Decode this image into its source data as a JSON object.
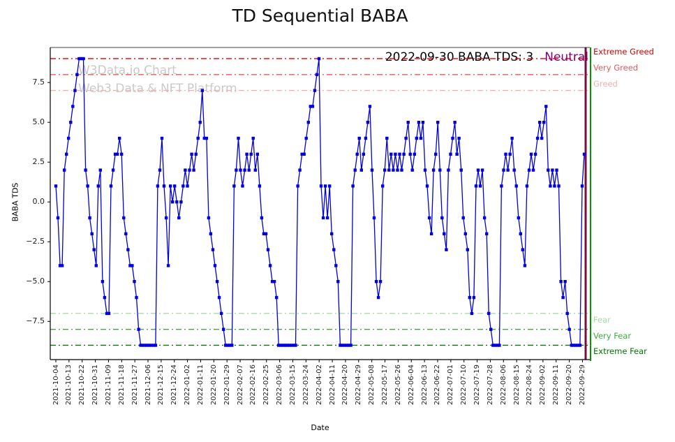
{
  "page": {
    "title": "TD Sequential BABA"
  },
  "watermark": {
    "line1": "W3Data.io Chart",
    "line2": "Web3 Data & NFT Platform"
  },
  "annotation": {
    "date_text": "2022-09-30 BABA TDS: 3",
    "sentiment": "Neutral",
    "sentiment_color": "#800080"
  },
  "axes": {
    "x_label": "Date",
    "y_label": "BABA TDS"
  },
  "chart_data": {
    "type": "line",
    "title": "TD Sequential BABA",
    "xlabel": "Date",
    "ylabel": "BABA TDS",
    "ylim": [
      -9.9,
      9.7
    ],
    "y_ticks": [
      7.5,
      5.0,
      2.5,
      0.0,
      -2.5,
      -5.0,
      -7.5
    ],
    "x_start": "2021-10-04",
    "x_end": "2022-09-30",
    "x_tick_labels": [
      "2021-10-04",
      "2021-10-13",
      "2021-10-22",
      "2021-10-31",
      "2021-11-09",
      "2021-11-18",
      "2021-11-27",
      "2021-12-06",
      "2021-12-15",
      "2021-12-24",
      "2022-01-02",
      "2022-01-11",
      "2022-01-20",
      "2022-01-29",
      "2022-02-07",
      "2022-02-16",
      "2022-02-25",
      "2022-03-06",
      "2022-03-15",
      "2022-03-24",
      "2022-04-02",
      "2022-04-11",
      "2022-04-20",
      "2022-04-29",
      "2022-05-08",
      "2022-05-17",
      "2022-05-26",
      "2022-06-04",
      "2022-06-13",
      "2022-06-22",
      "2022-07-01",
      "2022-07-10",
      "2022-07-19",
      "2022-07-28",
      "2022-08-06",
      "2022-08-15",
      "2022-08-24",
      "2022-09-02",
      "2022-09-11",
      "2022-09-20",
      "2022-09-29"
    ],
    "series": [
      {
        "name": "BABA TDS",
        "color": "#0000dd",
        "marker": "square",
        "values": [
          1,
          -1,
          -4,
          -4,
          2,
          3,
          4,
          5,
          6,
          7,
          8,
          9,
          9,
          9,
          2,
          1,
          -1,
          -2,
          -3,
          -4,
          1,
          2,
          -5,
          -6,
          -7,
          -7,
          1,
          2,
          3,
          3,
          4,
          3,
          -1,
          -2,
          -3,
          -4,
          -4,
          -5,
          -6,
          -8,
          -9,
          -9,
          -9,
          -9,
          -9,
          -9,
          -9,
          -9,
          1,
          2,
          4,
          1,
          -1,
          -4,
          1,
          0,
          1,
          0,
          -1,
          0,
          1,
          2,
          1,
          2,
          3,
          2,
          3,
          4,
          5,
          7,
          4,
          4,
          -1,
          -2,
          -3,
          -4,
          -5,
          -6,
          -7,
          -8,
          -9,
          -9,
          -9,
          -9,
          1,
          2,
          4,
          2,
          1,
          2,
          3,
          2,
          3,
          4,
          2,
          3,
          1,
          -1,
          -2,
          -2,
          -3,
          -4,
          -5,
          -5,
          -6,
          -9,
          -9,
          -9,
          -9,
          -9,
          -9,
          -9,
          -9,
          -9,
          1,
          2,
          3,
          3,
          4,
          5,
          6,
          6,
          7,
          8,
          9,
          1,
          -1,
          1,
          -1,
          1,
          -2,
          -3,
          -4,
          -5,
          -9,
          -9,
          -9,
          -9,
          -9,
          -9,
          1,
          2,
          3,
          4,
          2,
          3,
          4,
          5,
          6,
          2,
          -1,
          -5,
          -6,
          -5,
          1,
          2,
          4,
          2,
          3,
          2,
          3,
          2,
          3,
          2,
          3,
          4,
          5,
          3,
          2,
          3,
          4,
          5,
          4,
          5,
          2,
          1,
          -1,
          -2,
          2,
          3,
          5,
          2,
          -1,
          -2,
          -3,
          2,
          3,
          4,
          5,
          3,
          4,
          2,
          -1,
          -2,
          -3,
          -6,
          -7,
          -6,
          1,
          2,
          1,
          2,
          -1,
          -2,
          -7,
          -8,
          -9,
          -9,
          -9,
          -9,
          1,
          2,
          3,
          2,
          3,
          4,
          2,
          1,
          -1,
          -2,
          -3,
          -4,
          1,
          2,
          3,
          2,
          3,
          4,
          5,
          4,
          5,
          6,
          2,
          1,
          2,
          1,
          2,
          1,
          -5,
          -6,
          -5,
          -7,
          -8,
          -9,
          -9,
          -9,
          -9,
          -9,
          1,
          3
        ]
      }
    ],
    "reference_lines": [
      {
        "y": 9,
        "label": "Extreme Greed",
        "color": "#e00000",
        "style": "dashdot"
      },
      {
        "y": 8,
        "label": "Very Greed",
        "color": "#e85a5a",
        "style": "dashdot"
      },
      {
        "y": 7,
        "label": "Greed",
        "color": "#f2b0b0",
        "style": "dashdot"
      },
      {
        "y": -7,
        "label": "Fear",
        "color": "#a9d9a9",
        "style": "dashdot"
      },
      {
        "y": -8,
        "label": "Very Fear",
        "color": "#3faa3f",
        "style": "dashdot"
      },
      {
        "y": -9,
        "label": "Extreme Fear",
        "color": "#007700",
        "style": "dashdot"
      }
    ],
    "vlines": [
      {
        "position": "last_x",
        "color": "#7a0c3e",
        "width": 3
      },
      {
        "position": "right_spine",
        "color": "#009900",
        "width": 2
      }
    ],
    "legend": "none",
    "grid": false
  }
}
